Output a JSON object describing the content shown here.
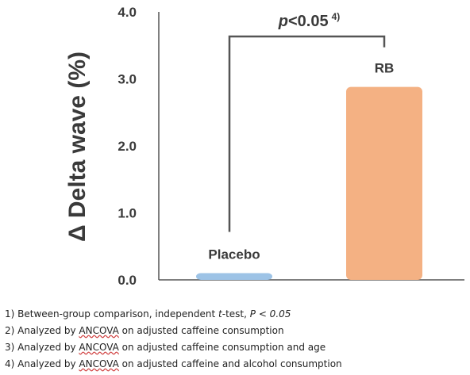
{
  "chart_data": {
    "type": "bar",
    "categories": [
      "Placebo",
      "RB"
    ],
    "values": [
      0.1,
      2.88
    ],
    "colors": [
      "#9dc3e6",
      "#f4b183"
    ],
    "ylabel": "Δ Delta wave (%)",
    "xlabel": "",
    "ylim": [
      0,
      4
    ],
    "yticks": [
      "0.0",
      "1.0",
      "2.0",
      "3.0",
      "4.0"
    ],
    "grid": false,
    "annotation": {
      "text": "p<0.05",
      "superscript": "4)",
      "between": [
        "Placebo",
        "RB"
      ]
    }
  },
  "footnotes": [
    {
      "num": "1)",
      "text_a": "Between-group comparison, independent ",
      "italic": "t",
      "text_b": "-test,  ",
      "italic2": "P  <  0.05"
    },
    {
      "num": "2)",
      "pre": "Analyzed by ",
      "underlined": "ANCOVA",
      "post": " on adjusted caffeine consumption"
    },
    {
      "num": "3)",
      "pre": "Analyzed by ",
      "underlined": "ANCOVA",
      "post": " on adjusted caffeine consumption and age"
    },
    {
      "num": "4)",
      "pre": "Analyzed by ",
      "underlined": "ANCOVA",
      "post": " on adjusted caffeine and alcohol consumption"
    }
  ]
}
